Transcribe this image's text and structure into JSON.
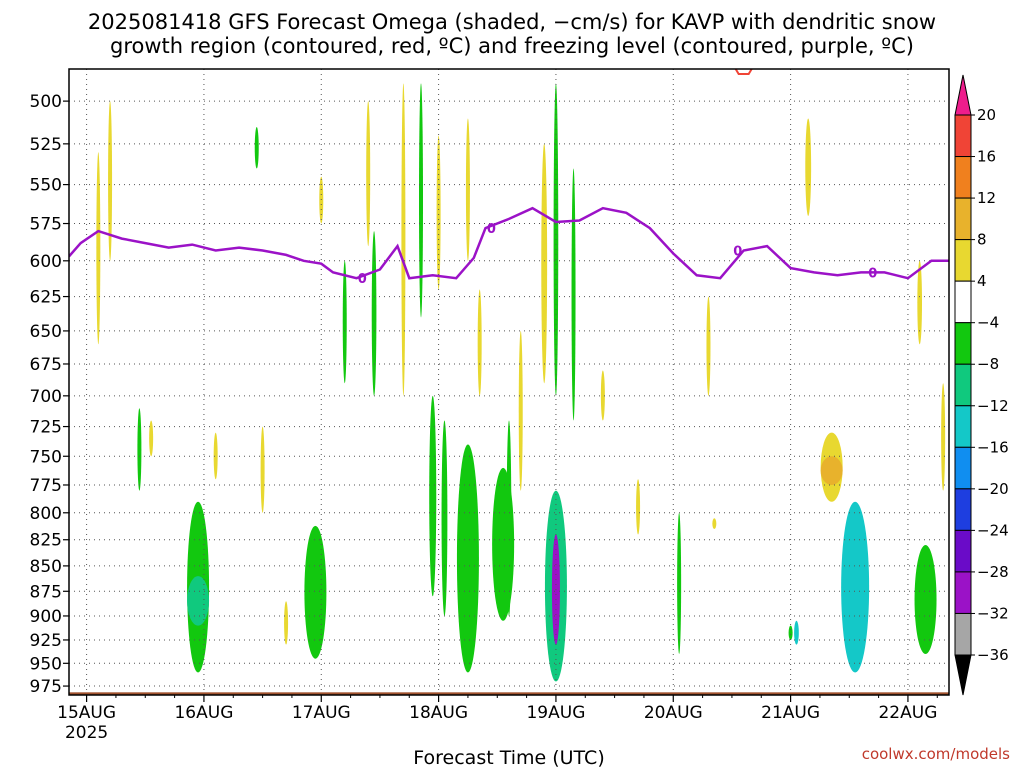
{
  "title_line1": "2025081418 GFS Forecast Omega (shaded, −cm/s) for KAVP with dendritic snow",
  "title_line2": "growth region (contoured, red, ºC) and freezing level (contoured, purple, ºC)",
  "xlabel": "Forecast Time (UTC)",
  "credit": "coolwx.com/models",
  "chart_data": {
    "type": "heatmap",
    "title": "2025081418 GFS Forecast Omega (shaded, −cm/s) for KAVP with dendritic snow growth region (contoured, red, ºC) and freezing level (contoured, purple, ºC)",
    "xlabel": "Forecast Time (UTC)",
    "ylabel": "",
    "x_ticks": [
      "15AUG",
      "16AUG",
      "17AUG",
      "18AUG",
      "19AUG",
      "20AUG",
      "21AUG",
      "22AUG"
    ],
    "x_year": "2025",
    "x_range_days": [
      -0.15,
      7.35
    ],
    "y_ticks": [
      500,
      525,
      550,
      575,
      600,
      625,
      650,
      675,
      700,
      725,
      750,
      775,
      800,
      825,
      850,
      875,
      900,
      925,
      950,
      975
    ],
    "y_range_hpa": [
      482,
      985
    ],
    "y_scale": "log-pressure",
    "grid": true,
    "colorbar": {
      "levels": [
        "20",
        "16",
        "12",
        "8",
        "4",
        "−4",
        "−8",
        "−12",
        "−16",
        "−20",
        "−24",
        "−28",
        "−32",
        "−36"
      ],
      "colors": [
        "#ee1d8c",
        "#f04436",
        "#f0801e",
        "#e8b22c",
        "#e8d830",
        "#ffffff",
        "#12c80f",
        "#10c97e",
        "#14c8c8",
        "#108ef0",
        "#1e3ee0",
        "#6a0bc8",
        "#9b12c7",
        "#a6a6a6",
        "#000000"
      ]
    },
    "freezing_level_label": "0",
    "freezing_level": [
      [
        -0.15,
        597
      ],
      [
        -0.05,
        588
      ],
      [
        0.1,
        580
      ],
      [
        0.3,
        585
      ],
      [
        0.5,
        588
      ],
      [
        0.7,
        591
      ],
      [
        0.9,
        589
      ],
      [
        1.1,
        593
      ],
      [
        1.3,
        591
      ],
      [
        1.5,
        593
      ],
      [
        1.7,
        596
      ],
      [
        1.85,
        600
      ],
      [
        2.0,
        602
      ],
      [
        2.1,
        608
      ],
      [
        2.3,
        612
      ],
      [
        2.5,
        606
      ],
      [
        2.65,
        590
      ],
      [
        2.75,
        612
      ],
      [
        2.95,
        610
      ],
      [
        3.15,
        612
      ],
      [
        3.3,
        598
      ],
      [
        3.4,
        578
      ],
      [
        3.6,
        572
      ],
      [
        3.8,
        565
      ],
      [
        4.0,
        574
      ],
      [
        4.2,
        573
      ],
      [
        4.4,
        565
      ],
      [
        4.6,
        568
      ],
      [
        4.8,
        578
      ],
      [
        5.0,
        595
      ],
      [
        5.2,
        610
      ],
      [
        5.4,
        612
      ],
      [
        5.6,
        593
      ],
      [
        5.8,
        590
      ],
      [
        6.0,
        605
      ],
      [
        6.2,
        608
      ],
      [
        6.4,
        610
      ],
      [
        6.6,
        608
      ],
      [
        6.8,
        608
      ],
      [
        7.0,
        612
      ],
      [
        7.2,
        600
      ],
      [
        7.35,
        600
      ]
    ],
    "omega_regions": [
      {
        "time": 0.95,
        "p_top": 790,
        "p_bot": 960,
        "value": -5
      },
      {
        "time": 0.95,
        "p_top": 860,
        "p_bot": 910,
        "value": -9
      },
      {
        "time": 1.95,
        "p_top": 812,
        "p_bot": 945,
        "value": -5
      },
      {
        "time": 3.55,
        "p_top": 760,
        "p_bot": 905,
        "value": -5
      },
      {
        "time": 3.25,
        "p_top": 740,
        "p_bot": 960,
        "value": -6
      },
      {
        "time": 4.0,
        "p_top": 780,
        "p_bot": 970,
        "value": -9
      },
      {
        "time": 4.0,
        "p_top": 820,
        "p_bot": 930,
        "value": -30
      },
      {
        "time": 6.55,
        "p_top": 790,
        "p_bot": 960,
        "value": -13
      },
      {
        "time": 7.15,
        "p_top": 830,
        "p_bot": 940,
        "value": -6
      },
      {
        "time": 6.35,
        "p_top": 730,
        "p_bot": 790,
        "value": 5
      },
      {
        "time": 6.35,
        "p_top": 750,
        "p_bot": 775,
        "value": 9
      }
    ]
  }
}
